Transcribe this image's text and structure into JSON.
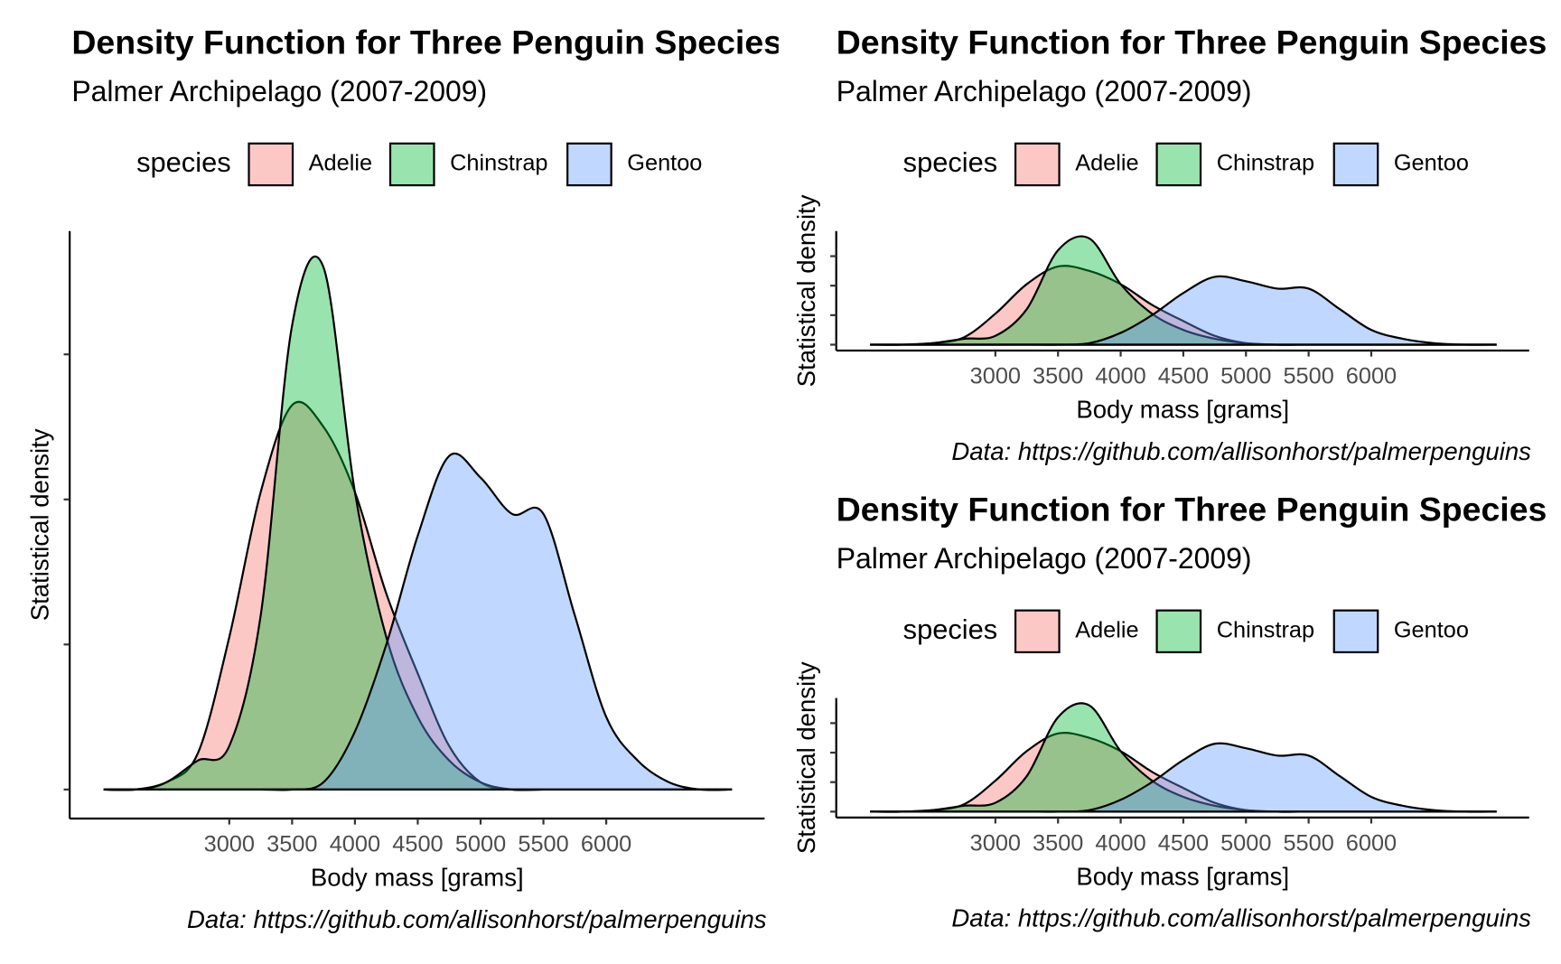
{
  "chart_data": [
    {
      "type": "area",
      "title": "Density Function for Three Penguin Species",
      "subtitle": "Palmer Archipelago (2007-2009)",
      "legend_title": "species",
      "x_label": "Body mass [grams]",
      "y_label": "Statistical density",
      "caption": "Data: https://github.com/allisonhorst/palmerpenguins",
      "x": [
        2000,
        2250,
        2500,
        2750,
        3000,
        3250,
        3500,
        3750,
        4000,
        4250,
        4500,
        4750,
        5000,
        5250,
        5500,
        5750,
        6000,
        6250,
        6500,
        6750,
        7000
      ],
      "series": [
        {
          "name": "Adelie",
          "color": "#F8766D",
          "values": [
            0,
            0,
            1e-05,
            5e-05,
            0.00021,
            0.00041,
            0.00053,
            0.0005,
            0.00041,
            0.00027,
            0.00016,
            6e-05,
            1e-05,
            0,
            0,
            0,
            0,
            0,
            0,
            0,
            0
          ]
        },
        {
          "name": "Chinstrap",
          "color": "#00BA38",
          "values": [
            0,
            0,
            1e-05,
            4e-05,
            6e-05,
            0.00024,
            0.00064,
            0.00072,
            0.00041,
            0.00021,
            0.0001,
            4e-05,
            1e-05,
            0,
            0,
            0,
            0,
            0,
            0,
            0,
            0
          ]
        },
        {
          "name": "Gentoo",
          "color": "#619CFF",
          "values": [
            0,
            0,
            0,
            0,
            0,
            0,
            0,
            1e-05,
            8e-05,
            0.0002,
            0.00035,
            0.00046,
            0.00043,
            0.00038,
            0.00038,
            0.00024,
            0.0001,
            4e-05,
            1e-05,
            0,
            0
          ]
        }
      ],
      "xlim": [
        1730,
        7260
      ],
      "xticks": [
        3000,
        3500,
        4000,
        4500,
        5000,
        5500,
        6000
      ],
      "ylim": [
        -4e-05,
        0.00077
      ],
      "yticks": [
        0,
        0.0002,
        0.0004,
        0.0006
      ]
    },
    {
      "type": "area",
      "title": "Density Function for Three Penguin Species",
      "subtitle": "Palmer Archipelago (2007-2009)",
      "legend_title": "species",
      "x_label": "Body mass [grams]",
      "y_label": "Statistical density",
      "caption": "Data: https://github.com/allisonhorst/palmerpenguins",
      "x": [
        2000,
        2250,
        2500,
        2750,
        3000,
        3250,
        3500,
        3750,
        4000,
        4250,
        4500,
        4750,
        5000,
        5250,
        5500,
        5750,
        6000,
        6250,
        6500,
        6750,
        7000
      ],
      "series": [
        {
          "name": "Adelie",
          "color": "#F8766D",
          "values": [
            0,
            0,
            1e-05,
            5e-05,
            0.00021,
            0.00041,
            0.00053,
            0.0005,
            0.00041,
            0.00027,
            0.00016,
            6e-05,
            1e-05,
            0,
            0,
            0,
            0,
            0,
            0,
            0,
            0
          ]
        },
        {
          "name": "Chinstrap",
          "color": "#00BA38",
          "values": [
            0,
            0,
            1e-05,
            4e-05,
            6e-05,
            0.00024,
            0.00064,
            0.00072,
            0.00041,
            0.00021,
            0.0001,
            4e-05,
            1e-05,
            0,
            0,
            0,
            0,
            0,
            0,
            0,
            0
          ]
        },
        {
          "name": "Gentoo",
          "color": "#619CFF",
          "values": [
            0,
            0,
            0,
            0,
            0,
            0,
            0,
            1e-05,
            8e-05,
            0.0002,
            0.00035,
            0.00046,
            0.00043,
            0.00038,
            0.00038,
            0.00024,
            0.0001,
            4e-05,
            1e-05,
            0,
            0
          ]
        }
      ],
      "xlim": [
        1730,
        7260
      ],
      "xticks": [
        3000,
        3500,
        4000,
        4500,
        5000,
        5500,
        6000
      ],
      "ylim": [
        -4e-05,
        0.00077
      ],
      "yticks": [
        0,
        0.0002,
        0.0004,
        0.0006
      ]
    },
    {
      "type": "area",
      "title": "Density Function for Three Penguin Species",
      "subtitle": "Palmer Archipelago (2007-2009)",
      "legend_title": "species",
      "x_label": "Body mass [grams]",
      "y_label": "Statistical density",
      "caption": "Data: https://github.com/allisonhorst/palmerpenguins",
      "x": [
        2000,
        2250,
        2500,
        2750,
        3000,
        3250,
        3500,
        3750,
        4000,
        4250,
        4500,
        4750,
        5000,
        5250,
        5500,
        5750,
        6000,
        6250,
        6500,
        6750,
        7000
      ],
      "series": [
        {
          "name": "Adelie",
          "color": "#F8766D",
          "values": [
            0,
            0,
            1e-05,
            5e-05,
            0.00021,
            0.00041,
            0.00053,
            0.0005,
            0.00041,
            0.00027,
            0.00016,
            6e-05,
            1e-05,
            0,
            0,
            0,
            0,
            0,
            0,
            0,
            0
          ]
        },
        {
          "name": "Chinstrap",
          "color": "#00BA38",
          "values": [
            0,
            0,
            1e-05,
            4e-05,
            6e-05,
            0.00024,
            0.00064,
            0.00072,
            0.00041,
            0.00021,
            0.0001,
            4e-05,
            1e-05,
            0,
            0,
            0,
            0,
            0,
            0,
            0,
            0
          ]
        },
        {
          "name": "Gentoo",
          "color": "#619CFF",
          "values": [
            0,
            0,
            0,
            0,
            0,
            0,
            0,
            1e-05,
            8e-05,
            0.0002,
            0.00035,
            0.00046,
            0.00043,
            0.00038,
            0.00038,
            0.00024,
            0.0001,
            4e-05,
            1e-05,
            0,
            0
          ]
        }
      ],
      "xlim": [
        1730,
        7260
      ],
      "xticks": [
        3000,
        3500,
        4000,
        4500,
        5000,
        5500,
        6000
      ],
      "ylim": [
        -4e-05,
        0.00077
      ],
      "yticks": [
        0,
        0.0002,
        0.0004,
        0.0006
      ]
    }
  ]
}
